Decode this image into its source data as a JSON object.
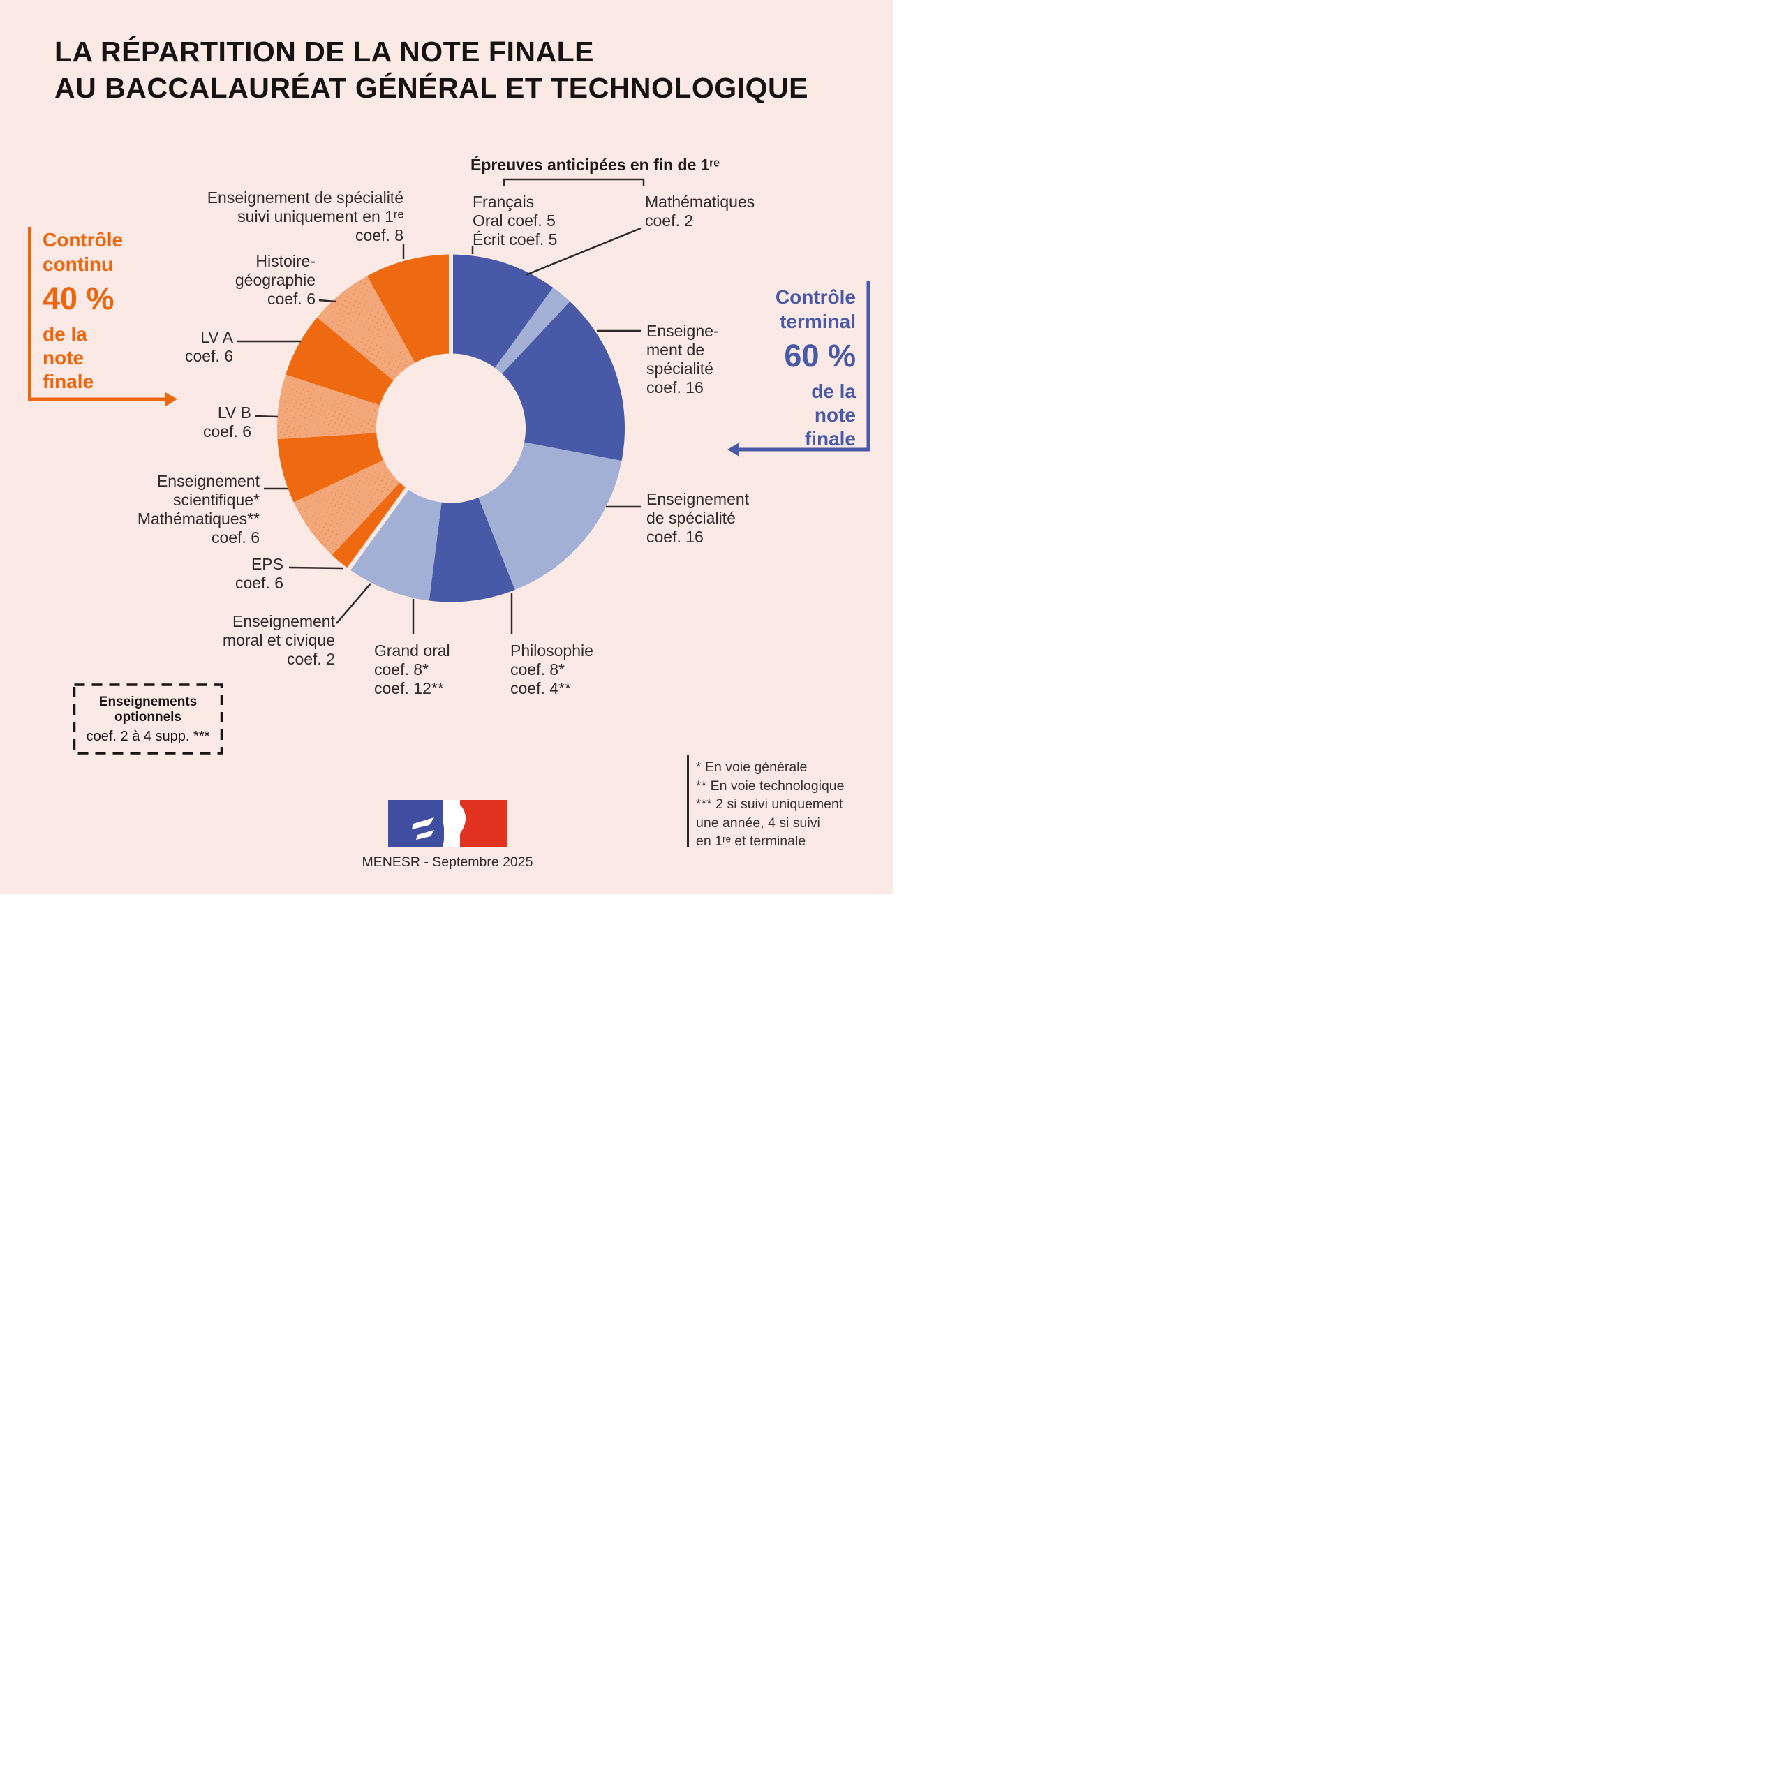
{
  "page": {
    "bg": "#FBE9E5"
  },
  "title": {
    "line1": "LA RÉPARTITION DE LA NOTE FINALE",
    "line2": "AU BACCALAURÉAT GÉNÉRAL ET TECHNOLOGIQUE"
  },
  "legend_continu": {
    "line1": "Contrôle",
    "line2": "continu",
    "percent": "40 %",
    "sub1": "de la",
    "sub2": "note",
    "sub3": "finale",
    "color": "#ED660D"
  },
  "legend_terminal": {
    "line1": "Contrôle",
    "line2": "terminal",
    "percent": "60 %",
    "sub1": "de la",
    "sub2": "note",
    "sub3": "finale",
    "color": "#4759A8"
  },
  "anticipees": {
    "heading": "Épreuves anticipées en fin de 1ʳᵉ",
    "francais": [
      "Français",
      "Oral coef. 5",
      "Écrit coef. 5"
    ],
    "mathematiques": [
      "Mathématiques",
      "coef. 2"
    ]
  },
  "labels": {
    "spe1re": [
      "Enseignement de spécialité",
      "suivi uniquement en 1ʳᵉ",
      "coef. 8"
    ],
    "hg": [
      "Histoire-",
      "géographie",
      "coef. 6"
    ],
    "lva": [
      "LV A",
      "coef. 6"
    ],
    "lvb": [
      "LV B",
      "coef. 6"
    ],
    "enssci": [
      "Enseignement",
      "scientifique*",
      "Mathématiques**",
      "coef. 6"
    ],
    "eps": [
      "EPS",
      "coef. 6"
    ],
    "emc": [
      "Enseignement",
      "moral et civique",
      "coef. 2"
    ],
    "grandoral": [
      "Grand oral",
      "coef. 8*",
      "coef. 12**"
    ],
    "philo": [
      "Philosophie",
      "coef. 8*",
      "coef. 4**"
    ],
    "spe16_top": [
      "Enseigne-",
      "ment de",
      "spécialité",
      "coef. 16"
    ],
    "spe16_bottom": [
      "Enseignement",
      "de spécialité",
      "coef. 16"
    ]
  },
  "options_box": {
    "line1": "Enseignements",
    "line2": "optionnels",
    "line3": "coef. 2 à 4 supp. ***"
  },
  "footnotes": [
    "* En voie générale",
    "** En voie technologique",
    "*** 2 si suivi uniquement",
    "une année, 4 si suivi",
    "en 1ʳᵉ et terminale"
  ],
  "caption": "MENESR - Septembre 2025",
  "chart_data": {
    "type": "pie",
    "subtype": "donut",
    "title": "Répartition de la note finale au baccalauréat général et technologique (total coef. 100)",
    "start": "12 o'clock, clockwise",
    "units": "coefficients (sur 100)",
    "legend_position": "left (contrôle continu 40 %) and right (contrôle terminal 60 %)",
    "palette": {
      "terminal_dark": "#4759A7",
      "terminal_light": "#A3B0D6",
      "continu_dark": "#EE690F",
      "continu_light": "#F3A87C"
    },
    "groups": [
      {
        "name": "Contrôle terminal",
        "share_percent": 60,
        "total_coef": 60
      },
      {
        "name": "Contrôle continu",
        "share_percent": 40,
        "total_coef": 40
      }
    ],
    "segments": [
      {
        "id": "francais",
        "label": "Français (épreuve anticipée fin de 1re)",
        "coef": 10,
        "detail": "Oral coef. 5 + Écrit coef. 5",
        "group": "terminal",
        "shade": "dark"
      },
      {
        "id": "mathematiques-anticipee",
        "label": "Mathématiques (épreuve anticipée fin de 1re)",
        "coef": 2,
        "group": "terminal",
        "shade": "light"
      },
      {
        "id": "specialite-terminale-1",
        "label": "Enseignement de spécialité",
        "coef": 16,
        "group": "terminal",
        "shade": "dark"
      },
      {
        "id": "specialite-terminale-2",
        "label": "Enseignement de spécialité",
        "coef": 16,
        "group": "terminal",
        "shade": "light"
      },
      {
        "id": "philosophie",
        "label": "Philosophie",
        "coef": 8,
        "detail": "coef. 8 en voie générale, coef. 4 en voie technologique",
        "group": "terminal",
        "shade": "dark"
      },
      {
        "id": "grand-oral",
        "label": "Grand oral",
        "coef": 8,
        "detail": "coef. 8 en voie générale, coef. 12 en voie technologique",
        "group": "terminal",
        "shade": "light"
      },
      {
        "id": "emc",
        "label": "Enseignement moral et civique",
        "coef": 2,
        "group": "continu",
        "shade": "dark"
      },
      {
        "id": "eps",
        "label": "EPS",
        "coef": 6,
        "group": "continu",
        "shade": "light"
      },
      {
        "id": "enseignement-scientifique",
        "label": "Enseignement scientifique* / Mathématiques**",
        "coef": 6,
        "group": "continu",
        "shade": "dark"
      },
      {
        "id": "lvb",
        "label": "LV B",
        "coef": 6,
        "group": "continu",
        "shade": "light"
      },
      {
        "id": "lva",
        "label": "LV A",
        "coef": 6,
        "group": "continu",
        "shade": "dark"
      },
      {
        "id": "histoire-geographie",
        "label": "Histoire-géographie",
        "coef": 6,
        "group": "continu",
        "shade": "light"
      },
      {
        "id": "specialite-premiere",
        "label": "Enseignement de spécialité suivi uniquement en 1re",
        "coef": 8,
        "group": "continu",
        "shade": "dark"
      }
    ]
  }
}
